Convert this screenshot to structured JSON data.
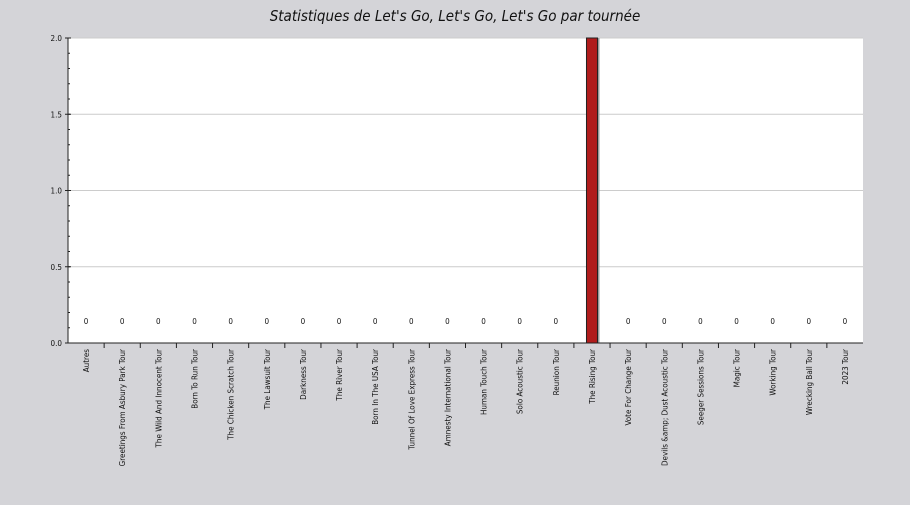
{
  "chart_data": {
    "type": "bar",
    "title": "Statistiques de Let's Go, Let's Go, Let's Go par tournée",
    "categories": [
      "Autres",
      "Greetings From Asbury Park Tour",
      "The Wild And Innocent Tour",
      "Born To Run Tour",
      "The Chicken Scratch Tour",
      "The Lawsuit Tour",
      "Darkness Tour",
      "The River Tour",
      "Born In The USA Tour",
      "Tunnel Of Love Express Tour",
      "Amnesty International Tour",
      "Human Touch Tour",
      "Solo Acoustic Tour",
      "Reunion Tour",
      "The Rising Tour",
      "Vote For Change Tour",
      "Devils &amp; Dust Acoustic Tour",
      "Seeger Sessions Tour",
      "Magic Tour",
      "Working Tour",
      "Wrecking Ball Tour",
      "2023 Tour"
    ],
    "values": [
      0,
      0,
      0,
      0,
      0,
      0,
      0,
      0,
      0,
      0,
      0,
      0,
      0,
      0,
      2,
      0,
      0,
      0,
      0,
      0,
      0,
      0
    ],
    "value_labels": [
      "0",
      "0",
      "0",
      "0",
      "0",
      "0",
      "0",
      "0",
      "0",
      "0",
      "0",
      "0",
      "0",
      "0",
      "2",
      "0",
      "0",
      "0",
      "0",
      "0",
      "0",
      "0"
    ],
    "yticks": [
      "0.0",
      "0.5",
      "1.0",
      "1.5",
      "2.0"
    ],
    "ylim": [
      0,
      2
    ],
    "grid": true,
    "bar_color": "#b01c1c"
  }
}
